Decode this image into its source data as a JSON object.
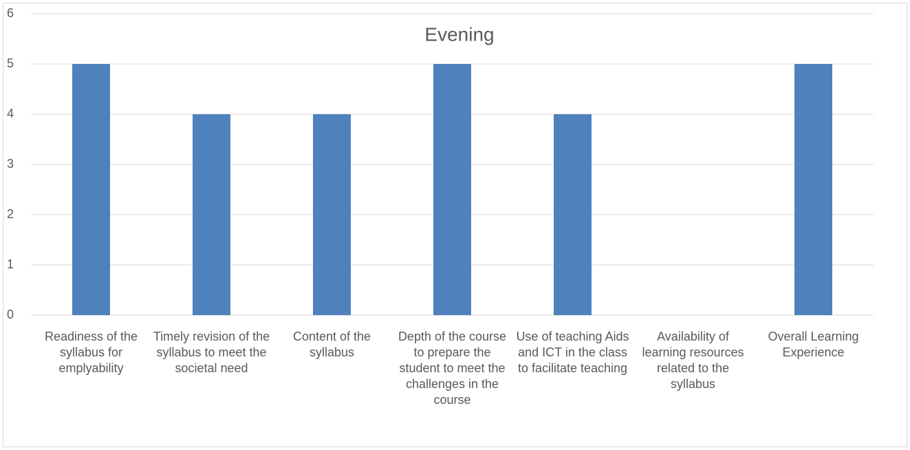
{
  "chart_data": {
    "type": "bar",
    "title": "Evening",
    "categories": [
      "Readiness of the syllabus for emplyability",
      "Timely revision of the syllabus to meet the societal need",
      "Content of the syllabus",
      "Depth of the course to prepare the student to meet the challenges in the course",
      "Use of teaching Aids and ICT in the class to facilitate teaching",
      "Availability of learning resources related to the syllabus",
      "Overall Learning Experience"
    ],
    "values": [
      5,
      4,
      4,
      5,
      4,
      0,
      5
    ],
    "color": "#4f81bd",
    "ylim": [
      0,
      6
    ],
    "yticks": [
      0,
      1,
      2,
      3,
      4,
      5,
      6
    ],
    "grid": true
  }
}
